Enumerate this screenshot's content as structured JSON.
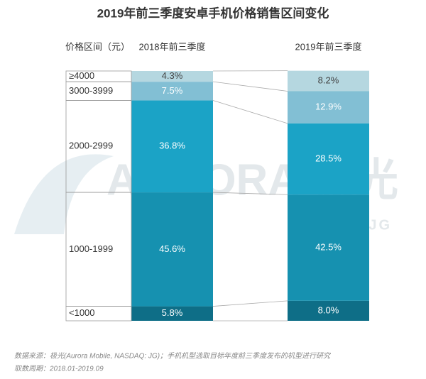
{
  "chart_data": {
    "type": "stacked-bar",
    "title": "2019年前三季度安卓手机价格销售区间变化",
    "category_axis_label": "价格区间（元）",
    "categories": [
      "2018年前三季度",
      "2019年前三季度"
    ],
    "series": [
      {
        "name": "<1000",
        "color": "#0e6e87",
        "values": [
          5.8,
          8.0
        ],
        "value_labels": [
          "5.8%",
          "8.0%"
        ]
      },
      {
        "name": "1000-1999",
        "color": "#1691b0",
        "values": [
          45.6,
          42.5
        ],
        "value_labels": [
          "45.6%",
          "42.5%"
        ]
      },
      {
        "name": "2000-2999",
        "color": "#1ba3c6",
        "values": [
          36.8,
          28.5
        ],
        "value_labels": [
          "36.8%",
          "28.5%"
        ]
      },
      {
        "name": "3000-3999",
        "color": "#82bfd4",
        "values": [
          7.5,
          12.9
        ],
        "value_labels": [
          "7.5%",
          "12.9%"
        ]
      },
      {
        "name": "≥4000",
        "color": "#b5d7e0",
        "values": [
          4.3,
          8.2
        ],
        "value_labels": [
          "4.3%",
          "8.2%"
        ]
      }
    ],
    "watermark": [
      "AURORA 极光",
      "NASDAQ:JG"
    ],
    "source": "数据来源：极光(Aurora Mobile, NASDAQ: JG)；手机机型选取目标年度前三季度发布的机型进行研究",
    "period": "取数周期：2018.01-2019.09"
  }
}
